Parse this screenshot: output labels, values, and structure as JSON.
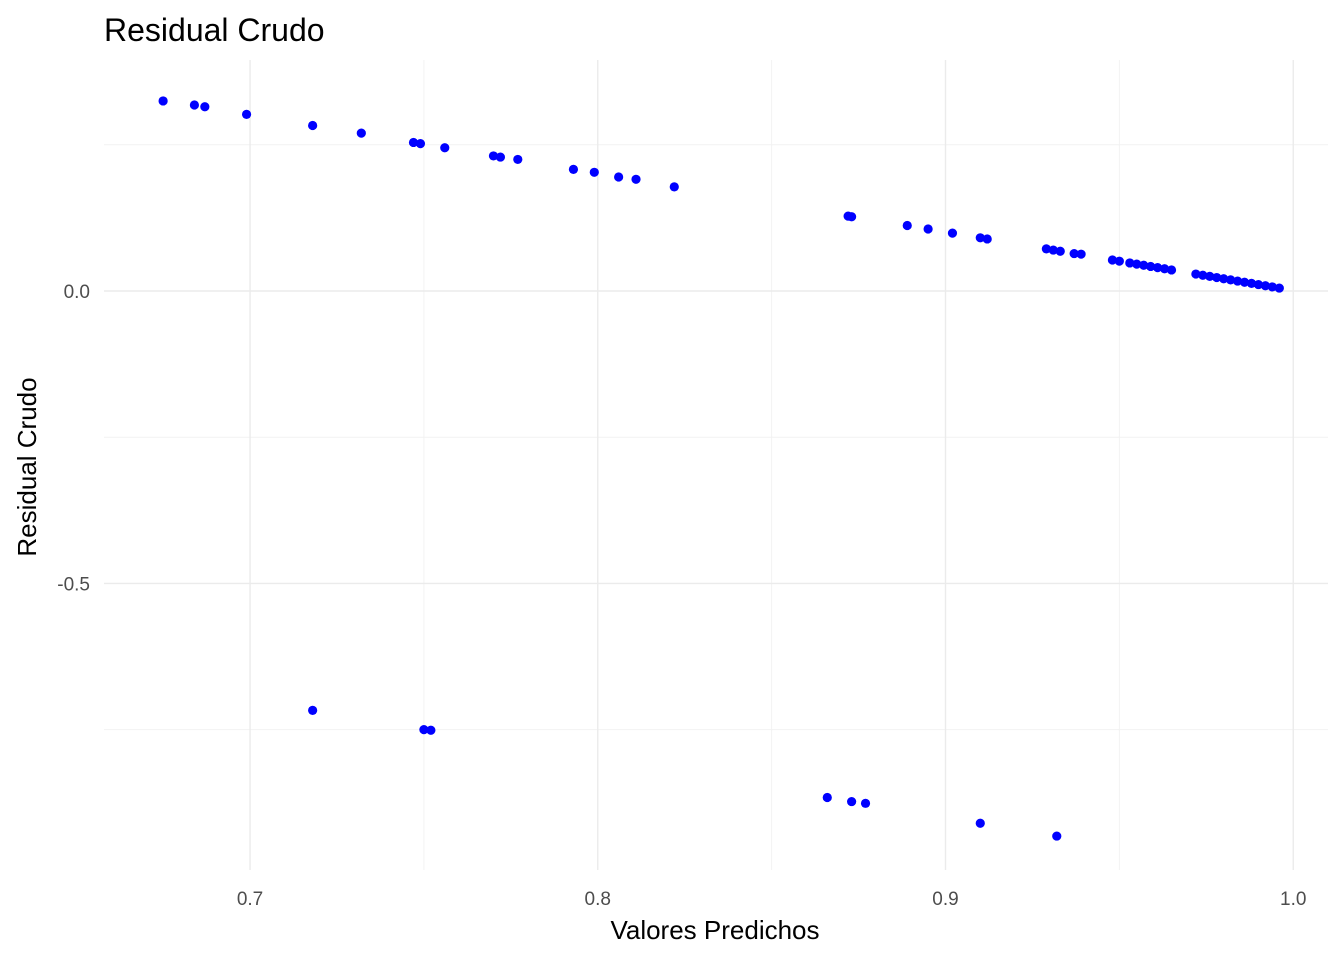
{
  "chart_data": {
    "type": "scatter",
    "title": "Residual Crudo",
    "xlabel": "Valores Predichos",
    "ylabel": "Residual Crudo",
    "xlim": [
      0.658,
      1.01
    ],
    "ylim": [
      -0.99,
      0.395
    ],
    "x_ticks": [
      0.7,
      0.8,
      0.9,
      1.0
    ],
    "x_tick_labels": [
      "0.7",
      "0.8",
      "0.9",
      "1.0"
    ],
    "y_ticks": [
      0.0,
      -0.5
    ],
    "y_tick_labels": [
      "0.0",
      "-0.5"
    ],
    "x_minor_ticks": [
      0.75,
      0.85,
      0.95
    ],
    "y_minor_ticks": [
      0.25,
      -0.25,
      -0.75
    ],
    "grid": true,
    "point_color": "#0000ff",
    "series": [
      {
        "points": [
          [
            0.675,
            0.325
          ],
          [
            0.684,
            0.318
          ],
          [
            0.687,
            0.315
          ],
          [
            0.699,
            0.302
          ],
          [
            0.718,
            0.283
          ],
          [
            0.732,
            0.27
          ],
          [
            0.747,
            0.254
          ],
          [
            0.749,
            0.252
          ],
          [
            0.756,
            0.245
          ],
          [
            0.77,
            0.231
          ],
          [
            0.772,
            0.229
          ],
          [
            0.777,
            0.225
          ],
          [
            0.793,
            0.208
          ],
          [
            0.799,
            0.203
          ],
          [
            0.806,
            0.195
          ],
          [
            0.811,
            0.191
          ],
          [
            0.822,
            0.178
          ],
          [
            0.872,
            0.128
          ],
          [
            0.873,
            0.127
          ],
          [
            0.889,
            0.112
          ],
          [
            0.895,
            0.106
          ],
          [
            0.902,
            0.099
          ],
          [
            0.91,
            0.091
          ],
          [
            0.912,
            0.089
          ],
          [
            0.929,
            0.072
          ],
          [
            0.931,
            0.07
          ],
          [
            0.933,
            0.068
          ],
          [
            0.937,
            0.064
          ],
          [
            0.939,
            0.063
          ],
          [
            0.948,
            0.053
          ],
          [
            0.95,
            0.051
          ],
          [
            0.953,
            0.048
          ],
          [
            0.955,
            0.046
          ],
          [
            0.957,
            0.044
          ],
          [
            0.959,
            0.042
          ],
          [
            0.961,
            0.04
          ],
          [
            0.963,
            0.038
          ],
          [
            0.965,
            0.036
          ],
          [
            0.972,
            0.029
          ],
          [
            0.974,
            0.027
          ],
          [
            0.976,
            0.025
          ],
          [
            0.978,
            0.023
          ],
          [
            0.98,
            0.021
          ],
          [
            0.982,
            0.019
          ],
          [
            0.984,
            0.017
          ],
          [
            0.986,
            0.015
          ],
          [
            0.988,
            0.013
          ],
          [
            0.99,
            0.011
          ],
          [
            0.992,
            0.009
          ],
          [
            0.994,
            0.007
          ],
          [
            0.996,
            0.005
          ],
          [
            0.718,
            -0.717
          ],
          [
            0.75,
            -0.75
          ],
          [
            0.752,
            -0.751
          ],
          [
            0.866,
            -0.866
          ],
          [
            0.873,
            -0.873
          ],
          [
            0.877,
            -0.876
          ],
          [
            0.91,
            -0.91
          ],
          [
            0.932,
            -0.932
          ]
        ]
      }
    ]
  }
}
